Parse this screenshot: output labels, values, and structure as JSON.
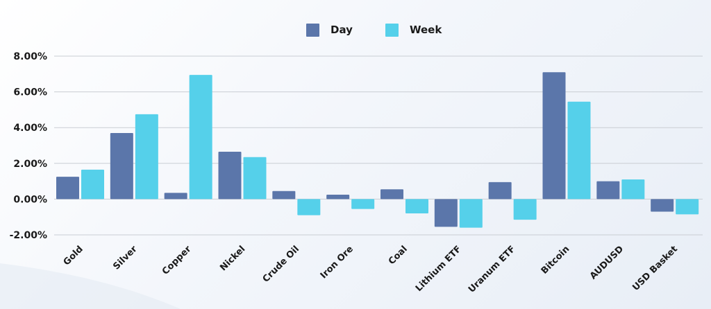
{
  "chart_data": {
    "type": "bar",
    "title": "",
    "xlabel": "",
    "ylabel": "",
    "categories": [
      "Gold",
      "Silver",
      "Copper",
      "Nickel",
      "Crude Oil",
      "Iron Ore",
      "Coal",
      "Lithium ETF",
      "Uranum ETF",
      "Bitcoin",
      "AUDUSD",
      "USD Basket"
    ],
    "series": [
      {
        "name": "Day",
        "color": "#5b76aa",
        "values": [
          1.25,
          3.7,
          0.35,
          2.65,
          0.45,
          0.25,
          0.55,
          -1.55,
          0.95,
          7.1,
          1.0,
          -0.7
        ]
      },
      {
        "name": "Week",
        "color": "#55d0ea",
        "values": [
          1.65,
          4.75,
          6.95,
          2.35,
          -0.9,
          -0.55,
          -0.8,
          -1.6,
          -1.15,
          5.45,
          1.1,
          -0.85
        ]
      }
    ],
    "ylim": [
      -2,
      8
    ],
    "yticks": [
      "-2.00%",
      "0.00%",
      "2.00%",
      "4.00%",
      "6.00%",
      "8.00%"
    ],
    "ytick_values": [
      -2,
      0,
      2,
      4,
      6,
      8
    ],
    "grid": true,
    "legend_position": "top-center"
  }
}
